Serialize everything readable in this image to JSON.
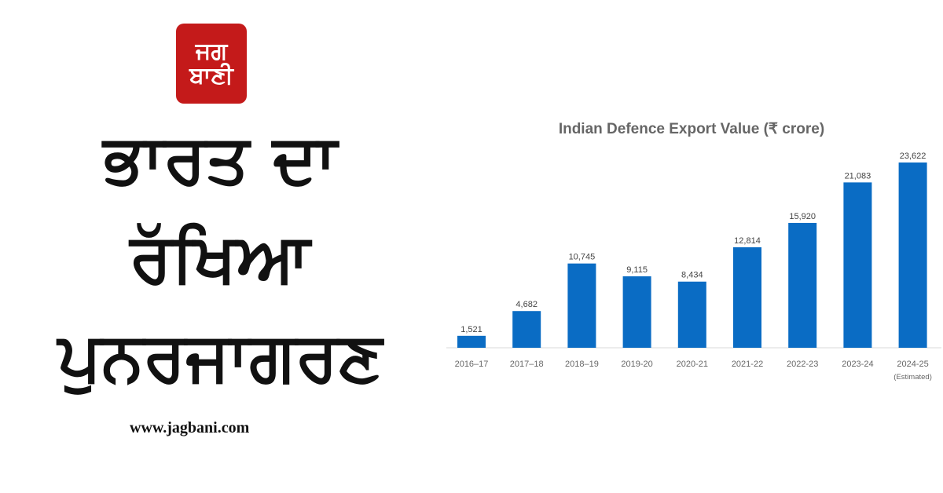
{
  "logo": {
    "line1": "ਜਗ",
    "line2": "ਬਾਣੀ",
    "color": "#c41a1a"
  },
  "headline": {
    "line1": "ਭਾਰਤ ਦਾ",
    "line2": "ਰੱਖਿਆ",
    "line3": "ਪੁਨਰਜਾਗਰਣ"
  },
  "website": "www.jagbani.com",
  "chart_data": {
    "type": "bar",
    "title": "Indian Defence Export Value (₹ crore)",
    "xlabel": "",
    "ylabel": "",
    "categories": [
      "2016–17",
      "2017–18",
      "2018–19",
      "2019-20",
      "2020-21",
      "2021-22",
      "2022-23",
      "2023-24",
      "2024-25"
    ],
    "category_notes": [
      "",
      "",
      "",
      "",
      "",
      "",
      "",
      "",
      "(Estimated)"
    ],
    "values": [
      1521,
      4682,
      10745,
      9115,
      8434,
      12814,
      15920,
      21083,
      23622
    ],
    "data_labels": [
      "1,521",
      "4,682",
      "10,745",
      "9,115",
      "8,434",
      "12,814",
      "15,920",
      "21,083",
      "23,622"
    ],
    "ylim": [
      0,
      24000
    ],
    "grid": false,
    "bar_color": "#0a6cc4"
  }
}
